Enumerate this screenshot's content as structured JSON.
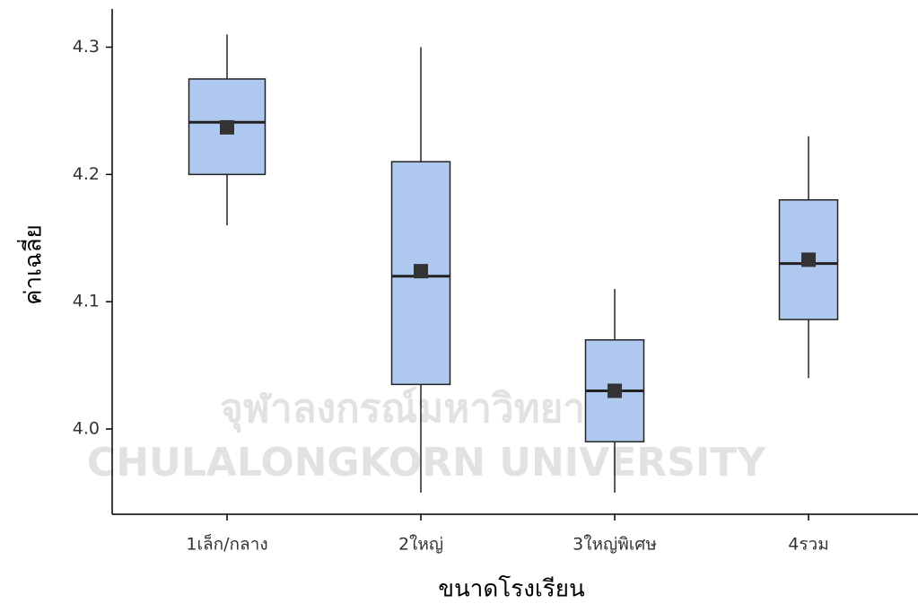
{
  "chart_data": {
    "type": "box",
    "x_label": "ขนาดโรงเรียน",
    "y_label": "ค่าเฉลี่ย",
    "watermark": [
      "จุฬาลงกรณ์มหาวิทยาลัย",
      "CHULALONGKORN UNIVERSITY"
    ],
    "categories": [
      "1เล็ก/กลาง",
      "2ใหญ่",
      "3ใหญ่พิเศษ",
      "4รวม"
    ],
    "whisker_low": [
      4.16,
      3.95,
      3.95,
      4.04
    ],
    "q1": [
      4.2,
      4.035,
      3.99,
      4.086
    ],
    "median": [
      4.241,
      4.12,
      4.03,
      4.13
    ],
    "q3": [
      4.275,
      4.21,
      4.07,
      4.18
    ],
    "whisker_high": [
      4.31,
      4.3,
      4.11,
      4.23
    ],
    "mean": [
      4.237,
      4.124,
      4.03,
      4.133
    ],
    "color": "#aec8ef",
    "line_color": "#222222",
    "mean_color": "#333333",
    "ylim": [
      3.933,
      4.33
    ],
    "yticks": [
      {
        "value": 4,
        "label": "4.0"
      },
      4.1,
      4.2,
      4.3
    ],
    "grid": false
  }
}
